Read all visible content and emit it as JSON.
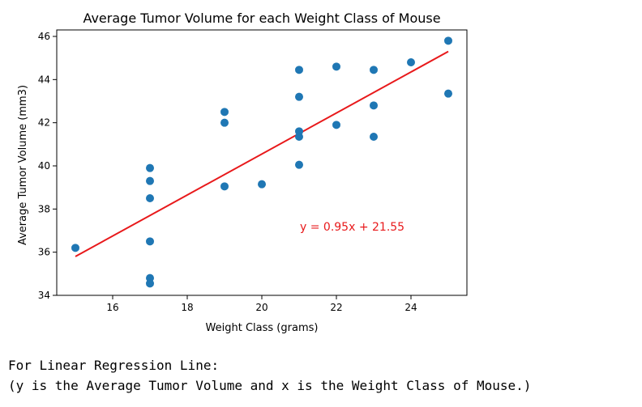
{
  "chart_data": {
    "type": "scatter",
    "title": "Average Tumor Volume for each Weight Class of Mouse",
    "xlabel": "Weight Class (grams)",
    "ylabel": "Average Tumor Volume (mm3)",
    "xlim": [
      14.5,
      25.5
    ],
    "ylim": [
      34,
      46.3
    ],
    "xticks": [
      16,
      18,
      20,
      22,
      24
    ],
    "yticks": [
      34,
      36,
      38,
      40,
      42,
      44,
      46
    ],
    "grid": false,
    "points": [
      {
        "x": 15,
        "y": 36.2
      },
      {
        "x": 17,
        "y": 39.9
      },
      {
        "x": 17,
        "y": 39.3
      },
      {
        "x": 17,
        "y": 38.5
      },
      {
        "x": 17,
        "y": 36.5
      },
      {
        "x": 17,
        "y": 34.8
      },
      {
        "x": 17,
        "y": 34.55
      },
      {
        "x": 19,
        "y": 42.5
      },
      {
        "x": 19,
        "y": 42.0
      },
      {
        "x": 19,
        "y": 39.05
      },
      {
        "x": 20,
        "y": 39.15
      },
      {
        "x": 21,
        "y": 44.45
      },
      {
        "x": 21,
        "y": 43.2
      },
      {
        "x": 21,
        "y": 41.6
      },
      {
        "x": 21,
        "y": 41.35
      },
      {
        "x": 21,
        "y": 40.05
      },
      {
        "x": 22,
        "y": 44.6
      },
      {
        "x": 22,
        "y": 41.9
      },
      {
        "x": 23,
        "y": 44.45
      },
      {
        "x": 23,
        "y": 42.8
      },
      {
        "x": 23,
        "y": 41.35
      },
      {
        "x": 24,
        "y": 44.8
      },
      {
        "x": 25,
        "y": 45.8
      },
      {
        "x": 25,
        "y": 43.35
      }
    ],
    "regression": {
      "slope": 0.95,
      "intercept": 21.55,
      "x_start": 15,
      "x_end": 25,
      "equation_label": "y = 0.95x + 21.55"
    },
    "colors": {
      "points": "#1f77b4",
      "line": "#e8191b",
      "annotation": "#e8191b"
    }
  },
  "caption": {
    "line1": "For Linear Regression Line:",
    "line2": "(y is the Average Tumor Volume and x is the Weight Class of Mouse.)"
  }
}
